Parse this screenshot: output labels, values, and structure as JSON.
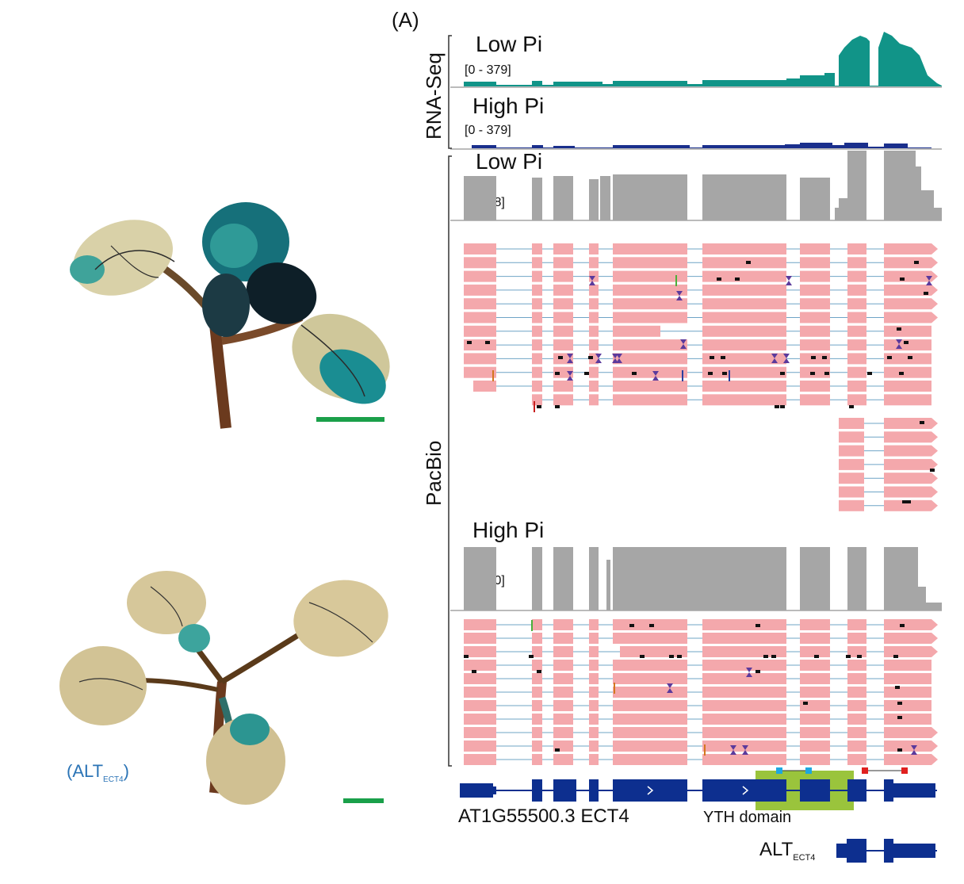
{
  "panel_label": "(A)",
  "groups": {
    "rna_seq": "RNA-Seq",
    "pacbio": "PacBio"
  },
  "tracks": [
    {
      "title": "Low Pi",
      "range": "[0 - 379]"
    },
    {
      "title": "High Pi",
      "range": "[0 - 379]"
    },
    {
      "title": "Low Pi",
      "range": "[0 - 18]"
    },
    {
      "title": "High Pi",
      "range": "[0 - 10]"
    }
  ],
  "gene": {
    "name": "AT1G55500.3 ECT4",
    "domain": "YTH domain",
    "alt": "ALT",
    "alt_subscript": "ECT4"
  },
  "left_label": {
    "text": "(ALT",
    "subscript": "ECT4",
    "close": ")"
  },
  "colors": {
    "teal": "#119488",
    "navy": "#1a2f8c",
    "gray": "#a6a6a6",
    "read": "#f4a8ac",
    "scale_bar": "#1aa04a",
    "domain": "#9ac43c",
    "exon": "#0d2f8f",
    "alt_label": "#2b74b6"
  }
}
